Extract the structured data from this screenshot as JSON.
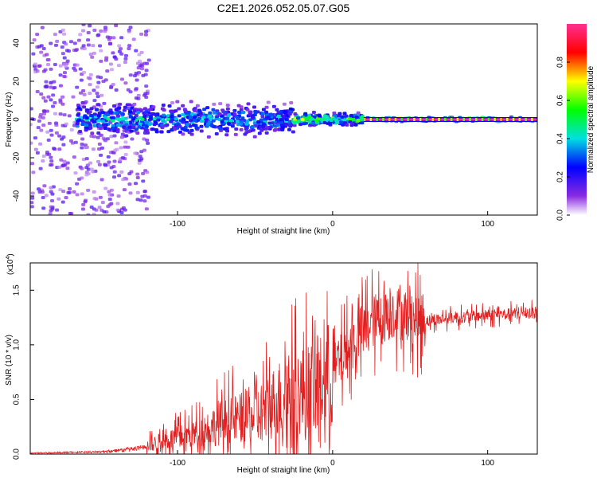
{
  "title": "C2E1.2026.052.05.07.G05",
  "chart_data": [
    {
      "type": "heatmap",
      "name": "spectrogram",
      "xlabel": "Height of straight line (km)",
      "ylabel": "Frequency (Hz)",
      "xlim": [
        -195,
        132
      ],
      "ylim": [
        -50,
        50
      ],
      "xticks": [
        -100,
        0,
        100
      ],
      "yticks": [
        -40,
        -20,
        0,
        20,
        40
      ],
      "colorbar": {
        "label": "Normalized spectral amplitude",
        "range": [
          0,
          1
        ],
        "ticks": [
          "0.0",
          "0.2",
          "0.4",
          "0.6",
          "0.8"
        ],
        "tick_values": [
          0.0,
          0.2,
          0.4,
          0.6,
          0.8
        ],
        "colors": [
          "#ffffff",
          "#8a2be2",
          "#0000ff",
          "#00e0e0",
          "#00ff00",
          "#ffff00",
          "#ff0000",
          "#ff2f92"
        ]
      },
      "description_bands": [
        {
          "x_range": [
            -195,
            -118
          ],
          "freq_spread": 50,
          "amplitude": 0.08
        },
        {
          "x_range": [
            -165,
            -25
          ],
          "freq_spread": 8,
          "amplitude": 0.35
        },
        {
          "x_range": [
            -25,
            20
          ],
          "freq_spread": 3,
          "amplitude": 0.55
        },
        {
          "x_range": [
            20,
            132
          ],
          "freq_spread": 1,
          "amplitude": 0.85
        }
      ]
    },
    {
      "type": "line",
      "name": "snr",
      "xlabel": "Height of straight line (km)",
      "ylabel": "SNR (10 * v/v)",
      "yscale_label": "(x10",
      "yscale_exp": "4",
      "xlim": [
        -195,
        132
      ],
      "ylim": [
        0,
        1.75
      ],
      "xticks": [
        -100,
        0,
        100
      ],
      "yticks": [
        "0.0",
        "0.5",
        "1.0",
        "1.5"
      ],
      "ytick_values": [
        0.0,
        0.5,
        1.0,
        1.5
      ],
      "color": "#e02020",
      "series_envelope": [
        {
          "x": -195,
          "y": 0.01
        },
        {
          "x": -150,
          "y": 0.02
        },
        {
          "x": -125,
          "y": 0.05
        },
        {
          "x": -110,
          "y": 0.12
        },
        {
          "x": -90,
          "y": 0.18
        },
        {
          "x": -70,
          "y": 0.3
        },
        {
          "x": -50,
          "y": 0.35
        },
        {
          "x": -30,
          "y": 0.55
        },
        {
          "x": -10,
          "y": 0.6
        },
        {
          "x": 0,
          "y": 0.75
        },
        {
          "x": 10,
          "y": 0.95
        },
        {
          "x": 20,
          "y": 1.15
        },
        {
          "x": 30,
          "y": 1.25
        },
        {
          "x": 40,
          "y": 1.3
        },
        {
          "x": 60,
          "y": 1.22
        },
        {
          "x": 80,
          "y": 1.25
        },
        {
          "x": 100,
          "y": 1.27
        },
        {
          "x": 132,
          "y": 1.3
        }
      ],
      "peak_max": 1.75
    }
  ]
}
